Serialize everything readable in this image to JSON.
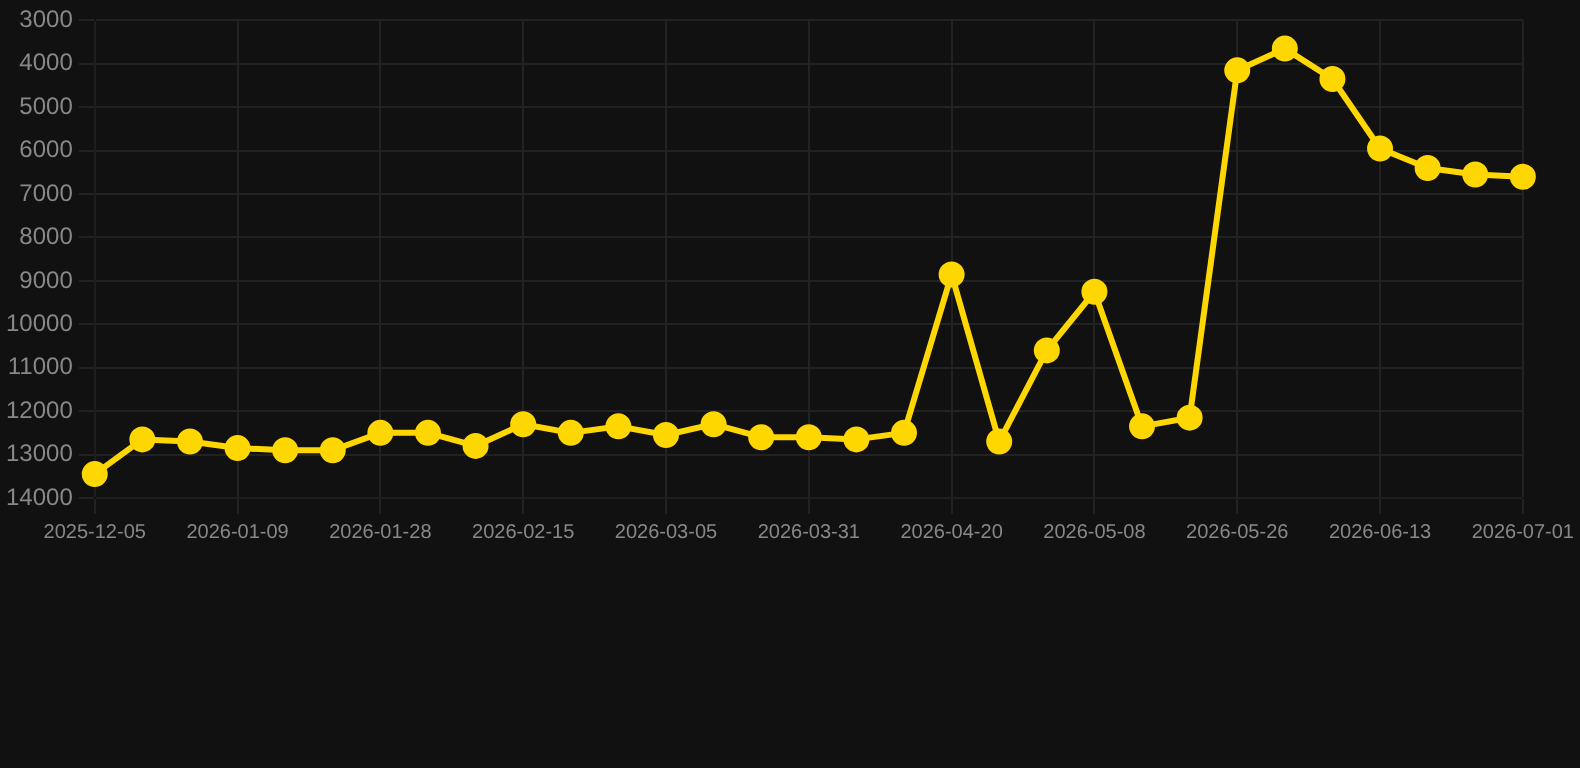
{
  "chart_data": {
    "type": "line",
    "categories": [
      "2025-12-05",
      null,
      null,
      "2026-01-09",
      null,
      null,
      "2026-01-28",
      null,
      null,
      "2026-02-15",
      null,
      null,
      "2026-03-05",
      null,
      null,
      "2026-03-31",
      null,
      null,
      "2026-04-20",
      null,
      null,
      "2026-05-08",
      null,
      null,
      "2026-05-26",
      null,
      null,
      "2026-06-13",
      null,
      null,
      "2026-07-01"
    ],
    "series": [
      {
        "color": "#ffd700",
        "values": [
          13450,
          12650,
          12700,
          12850,
          12900,
          12900,
          12500,
          12500,
          12800,
          12300,
          12500,
          12350,
          12550,
          12300,
          12600,
          12600,
          12650,
          12500,
          8850,
          12700,
          10600,
          9250,
          12350,
          12150,
          4150,
          3650,
          4350,
          5950,
          6400,
          6550,
          6600
        ]
      }
    ],
    "ylim": [
      14000,
      3000
    ],
    "yticks": [
      3000,
      4000,
      5000,
      6000,
      7000,
      8000,
      9000,
      10000,
      11000,
      12000,
      13000,
      14000
    ],
    "grid": true,
    "marker": "circle",
    "line_style": "solid",
    "legend": false
  }
}
